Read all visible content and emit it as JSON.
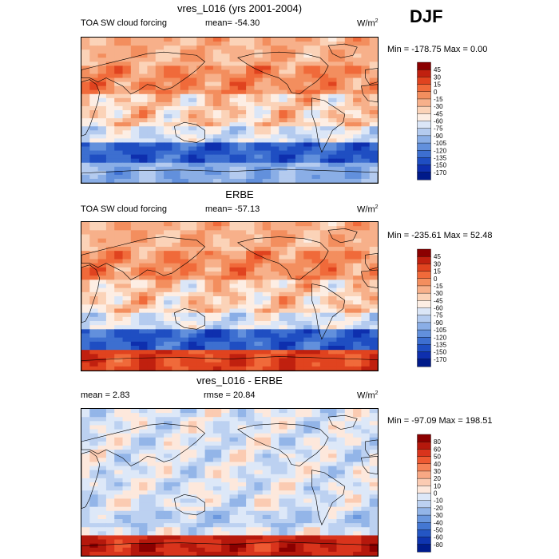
{
  "season": "DJF",
  "chart_data": [
    {
      "type": "heatmap",
      "title": "vres_L016 (yrs 2001-2004)",
      "left_label": "TOA SW cloud forcing",
      "center_label": "mean= -54.30",
      "units": "W/m",
      "units_sup": "2",
      "minmax": "Min = -178.75 Max =   0.00",
      "colorbar": {
        "levels": [
          "45",
          "30",
          "15",
          "0",
          "-15",
          "-30",
          "-45",
          "-60",
          "-75",
          "-90",
          "-105",
          "-120",
          "-135",
          "-150",
          "-170"
        ],
        "colors": [
          "#8b0000",
          "#c0200f",
          "#e0431f",
          "#f06a3a",
          "#f38e5e",
          "#f7b08a",
          "#fbd3b8",
          "#fdeee4",
          "#dbe6f7",
          "#b4cbef",
          "#8aaee6",
          "#6290dc",
          "#3d6fd0",
          "#1f4ec2",
          "#0e2fae",
          "#001a8a"
        ]
      }
    },
    {
      "type": "heatmap",
      "title": "ERBE",
      "left_label": "TOA SW cloud forcing",
      "center_label": "mean= -57.13",
      "units": "W/m",
      "units_sup": "2",
      "minmax": "Min = -235.61 Max =  52.48",
      "colorbar": {
        "levels": [
          "45",
          "30",
          "15",
          "0",
          "-15",
          "-30",
          "-45",
          "-60",
          "-75",
          "-90",
          "-105",
          "-120",
          "-135",
          "-150",
          "-170"
        ],
        "colors": [
          "#8b0000",
          "#c0200f",
          "#e0431f",
          "#f06a3a",
          "#f38e5e",
          "#f7b08a",
          "#fbd3b8",
          "#fdeee4",
          "#dbe6f7",
          "#b4cbef",
          "#8aaee6",
          "#6290dc",
          "#3d6fd0",
          "#1f4ec2",
          "#0e2fae",
          "#001a8a"
        ]
      }
    },
    {
      "type": "heatmap",
      "title": "vres_L016 - ERBE",
      "left_label": "mean =   2.83",
      "center_label": "rmse =  20.84",
      "units": "W/m",
      "units_sup": "2",
      "minmax": "Min = -97.09 Max = 198.51",
      "colorbar": {
        "levels": [
          "80",
          "60",
          "50",
          "40",
          "30",
          "20",
          "10",
          "0",
          "-10",
          "-20",
          "-30",
          "-40",
          "-50",
          "-60",
          "-80"
        ],
        "colors": [
          "#8b0000",
          "#b5180c",
          "#d9341c",
          "#ee5a32",
          "#f58257",
          "#f8a884",
          "#fbcbb2",
          "#fde8dc",
          "#dde8f8",
          "#bcd1f1",
          "#93b5e8",
          "#6a97de",
          "#4477d2",
          "#2456c4",
          "#0f35b0",
          "#001c8c"
        ]
      }
    }
  ]
}
